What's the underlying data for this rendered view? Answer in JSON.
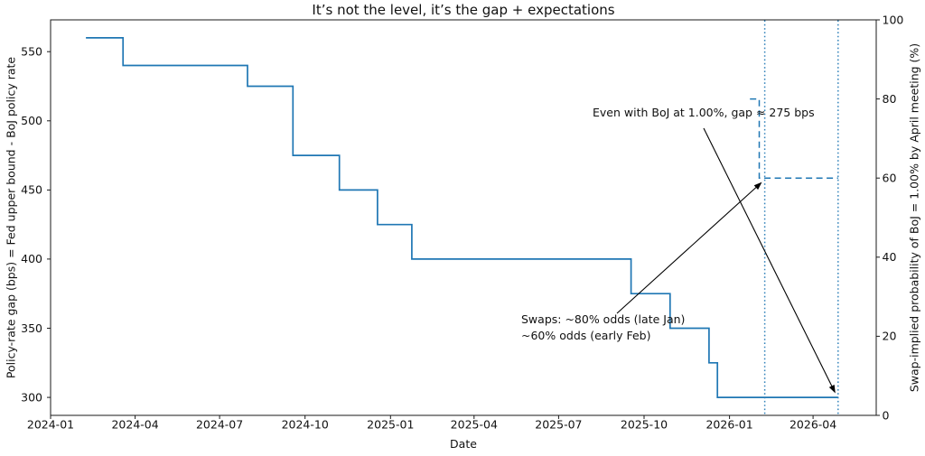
{
  "figure": {
    "background": "#ffffff",
    "accent_color": "#1f77b4",
    "text_color": "#111111"
  },
  "chart_data": {
    "type": "line",
    "title": "It’s not the level, it’s the gap + expectations",
    "xlabel": "Date",
    "ylabel_left": "Policy-rate gap (bps) = Fed upper bound - BoJ policy rate",
    "ylabel_right": "Swap-implied probability of BoJ = 1.00% by April meeting (%)",
    "x_start": "2024-01-01",
    "x_end": "2026-06-08",
    "ylim_left": [
      287,
      573
    ],
    "ylim_right": [
      0,
      100
    ],
    "grid": false,
    "legend": "none",
    "x_ticks": [
      {
        "label": "2024-01",
        "date": "2024-01-01"
      },
      {
        "label": "2024-04",
        "date": "2024-04-01"
      },
      {
        "label": "2024-07",
        "date": "2024-07-01"
      },
      {
        "label": "2024-10",
        "date": "2024-10-01"
      },
      {
        "label": "2025-01",
        "date": "2025-01-01"
      },
      {
        "label": "2025-04",
        "date": "2025-04-01"
      },
      {
        "label": "2025-07",
        "date": "2025-07-01"
      },
      {
        "label": "2025-10",
        "date": "2025-10-01"
      },
      {
        "label": "2026-01",
        "date": "2026-01-01"
      },
      {
        "label": "2026-04",
        "date": "2026-04-01"
      }
    ],
    "y_ticks_left": [
      300,
      350,
      400,
      450,
      500,
      550
    ],
    "y_ticks_right": [
      0,
      20,
      40,
      60,
      80,
      100
    ],
    "series": [
      {
        "name": "Policy-rate gap (bps)",
        "axis": "left",
        "style": "solid",
        "step": true,
        "color": "#1f77b4",
        "points": [
          [
            "2024-02-08",
            560
          ],
          [
            "2024-03-19",
            540
          ],
          [
            "2024-07-31",
            525
          ],
          [
            "2024-09-18",
            475
          ],
          [
            "2024-11-07",
            450
          ],
          [
            "2024-12-18",
            425
          ],
          [
            "2025-01-24",
            400
          ],
          [
            "2025-09-17",
            375
          ],
          [
            "2025-10-29",
            350
          ],
          [
            "2025-12-10",
            325
          ],
          [
            "2025-12-19",
            300
          ]
        ],
        "end_date": "2026-04-28"
      },
      {
        "name": "Swap-implied probability of BoJ = 1.00% (%)",
        "axis": "right",
        "style": "dashed",
        "step": true,
        "color": "#1f77b4",
        "points": [
          [
            "2026-01-23",
            80
          ],
          [
            "2026-02-02",
            60
          ]
        ],
        "end_date": "2026-04-28"
      }
    ],
    "vlines": [
      {
        "date": "2026-02-08",
        "style": "dotted",
        "color": "#1f77b4"
      },
      {
        "date": "2026-04-28",
        "style": "dotted",
        "color": "#1f77b4"
      }
    ],
    "annotations": [
      {
        "text": "Even with BoJ at 1.00%, gap ≈ 275 bps",
        "target_date": "2026-04-25",
        "target_value": 303,
        "target_axis": "left"
      },
      {
        "text": "Swaps: ~80% odds (late Jan)\n~60% odds (early Feb)",
        "target_date": "2026-02-05",
        "target_value": 59,
        "target_axis": "right"
      }
    ]
  }
}
